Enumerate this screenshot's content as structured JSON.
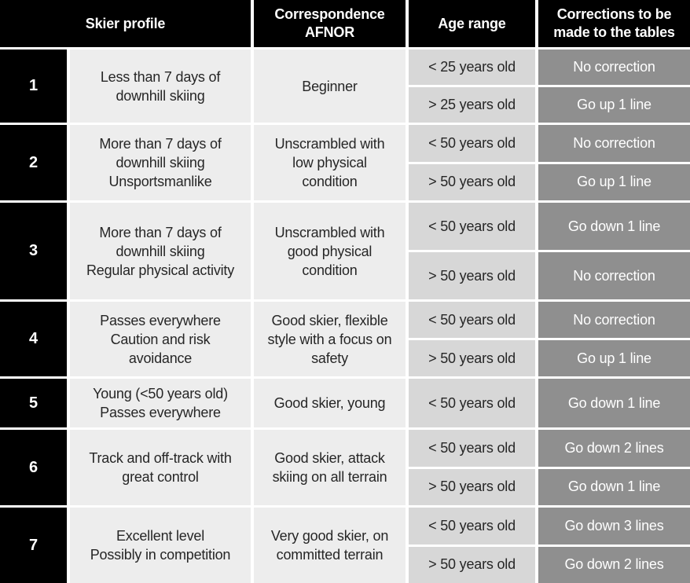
{
  "colors": {
    "header_bg": "#000000",
    "header_text": "#ffffff",
    "profile_bg": "#ededed",
    "age_bg": "#d7d7d7",
    "correction_bg": "#8f8f8f",
    "correction_text": "#ffffff",
    "body_text": "#262626",
    "gap": "#ffffff"
  },
  "table": {
    "headers": {
      "skier_profile": "Skier profile",
      "correspondence": "Correspondence AFNOR",
      "age_range": "Age range",
      "corrections": "Corrections to be made to the tables"
    },
    "rows": [
      {
        "num": "1",
        "profile": "Less than 7 days of downhill skiing",
        "correspondence": "Beginner",
        "subs": [
          {
            "age": "< 25 years old",
            "correction": "No correction"
          },
          {
            "age": "> 25 years old",
            "correction": "Go up 1 line"
          }
        ]
      },
      {
        "num": "2",
        "profile": "More than 7 days of downhill skiing\nUnsportsmanlike",
        "correspondence": "Unscrambled with low physical condition",
        "subs": [
          {
            "age": "< 50 years old",
            "correction": "No correction"
          },
          {
            "age": "> 50 years old",
            "correction": "Go up 1 line"
          }
        ]
      },
      {
        "num": "3",
        "profile": "More than 7 days of downhill skiing\nRegular physical activity",
        "correspondence": "Unscrambled with good physical condition",
        "subs": [
          {
            "age": "< 50 years old",
            "correction": "Go down 1 line"
          },
          {
            "age": "> 50 years old",
            "correction": "No correction"
          }
        ]
      },
      {
        "num": "4",
        "profile": "Passes everywhere\nCaution and risk avoidance",
        "correspondence": "Good skier, flexible style with a focus on safety",
        "subs": [
          {
            "age": "< 50 years old",
            "correction": "No correction"
          },
          {
            "age": "> 50 years old",
            "correction": "Go up 1 line"
          }
        ]
      },
      {
        "num": "5",
        "profile": "Young (<50 years old)\nPasses everywhere",
        "correspondence": "Good skier, young",
        "subs": [
          {
            "age": "< 50 years old",
            "correction": "Go down 1 line"
          }
        ]
      },
      {
        "num": "6",
        "profile": "Track and off-track with great control",
        "correspondence": "Good skier, attack skiing on all terrain",
        "subs": [
          {
            "age": "< 50 years old",
            "correction": "Go down 2 lines"
          },
          {
            "age": "> 50 years old",
            "correction": "Go down 1 line"
          }
        ]
      },
      {
        "num": "7",
        "profile": "Excellent level\nPossibly in competition",
        "correspondence": "Very good skier, on committed terrain",
        "subs": [
          {
            "age": "< 50 years old",
            "correction": "Go down 3 lines"
          },
          {
            "age": "> 50 years old",
            "correction": "Go down 2 lines"
          }
        ]
      }
    ]
  }
}
